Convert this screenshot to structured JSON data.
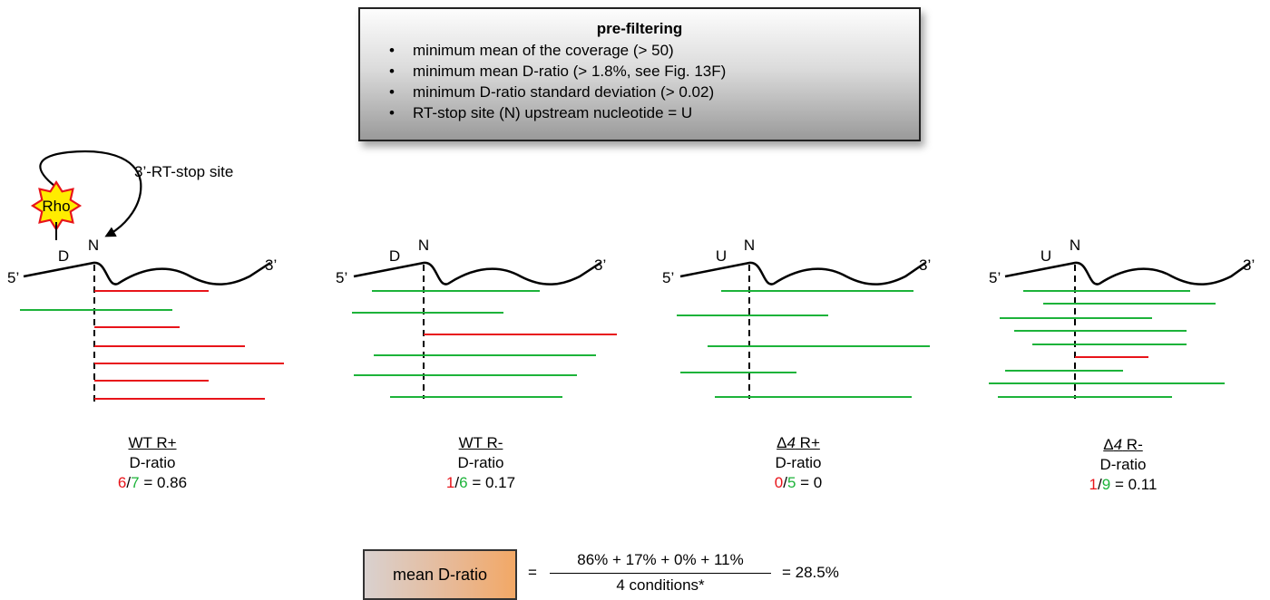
{
  "prefilter": {
    "title": "pre-filtering",
    "items": [
      "minimum mean of the coverage (> 50)",
      "minimum mean D-ratio (> 1.8%, see Fig. 13F)",
      "minimum D-ratio standard deviation (> 0.02)",
      "RT-stop site (N) upstream nucleotide = U"
    ]
  },
  "labels": {
    "rho": "Rho",
    "stop_site": "3’-RT-stop site",
    "five_prime": "5’",
    "three_prime": "3’",
    "n": "N",
    "d": "D",
    "u": "U"
  },
  "conditions": [
    {
      "prefix": "",
      "italic": "",
      "name": "WT R+",
      "metric": "D-ratio",
      "num": "6",
      "den": "7",
      "result": "= 0.86"
    },
    {
      "prefix": "",
      "italic": "",
      "name": "WT R-",
      "metric": "D-ratio",
      "num": "1",
      "den": "6",
      "result": "= 0.17"
    },
    {
      "prefix": "Δ",
      "italic": "4",
      "name": " R+",
      "metric": "D-ratio",
      "num": "0",
      "den": "5",
      "result": "= 0"
    },
    {
      "prefix": "Δ",
      "italic": "4",
      "name": " R-",
      "metric": "D-ratio",
      "num": "1",
      "den": "9",
      "result": "= 0.11"
    }
  ],
  "formula": {
    "box_label": "mean D-ratio",
    "equals": "=",
    "numerator": "86% + 17% + 0% + 11%",
    "denominator": "4 conditions*",
    "result": "= 28.5%"
  },
  "colors": {
    "stop_read": "#e8141a",
    "through_read": "#1db33a",
    "rho_fill": "#ffec00",
    "rho_stroke": "#e8141a"
  }
}
